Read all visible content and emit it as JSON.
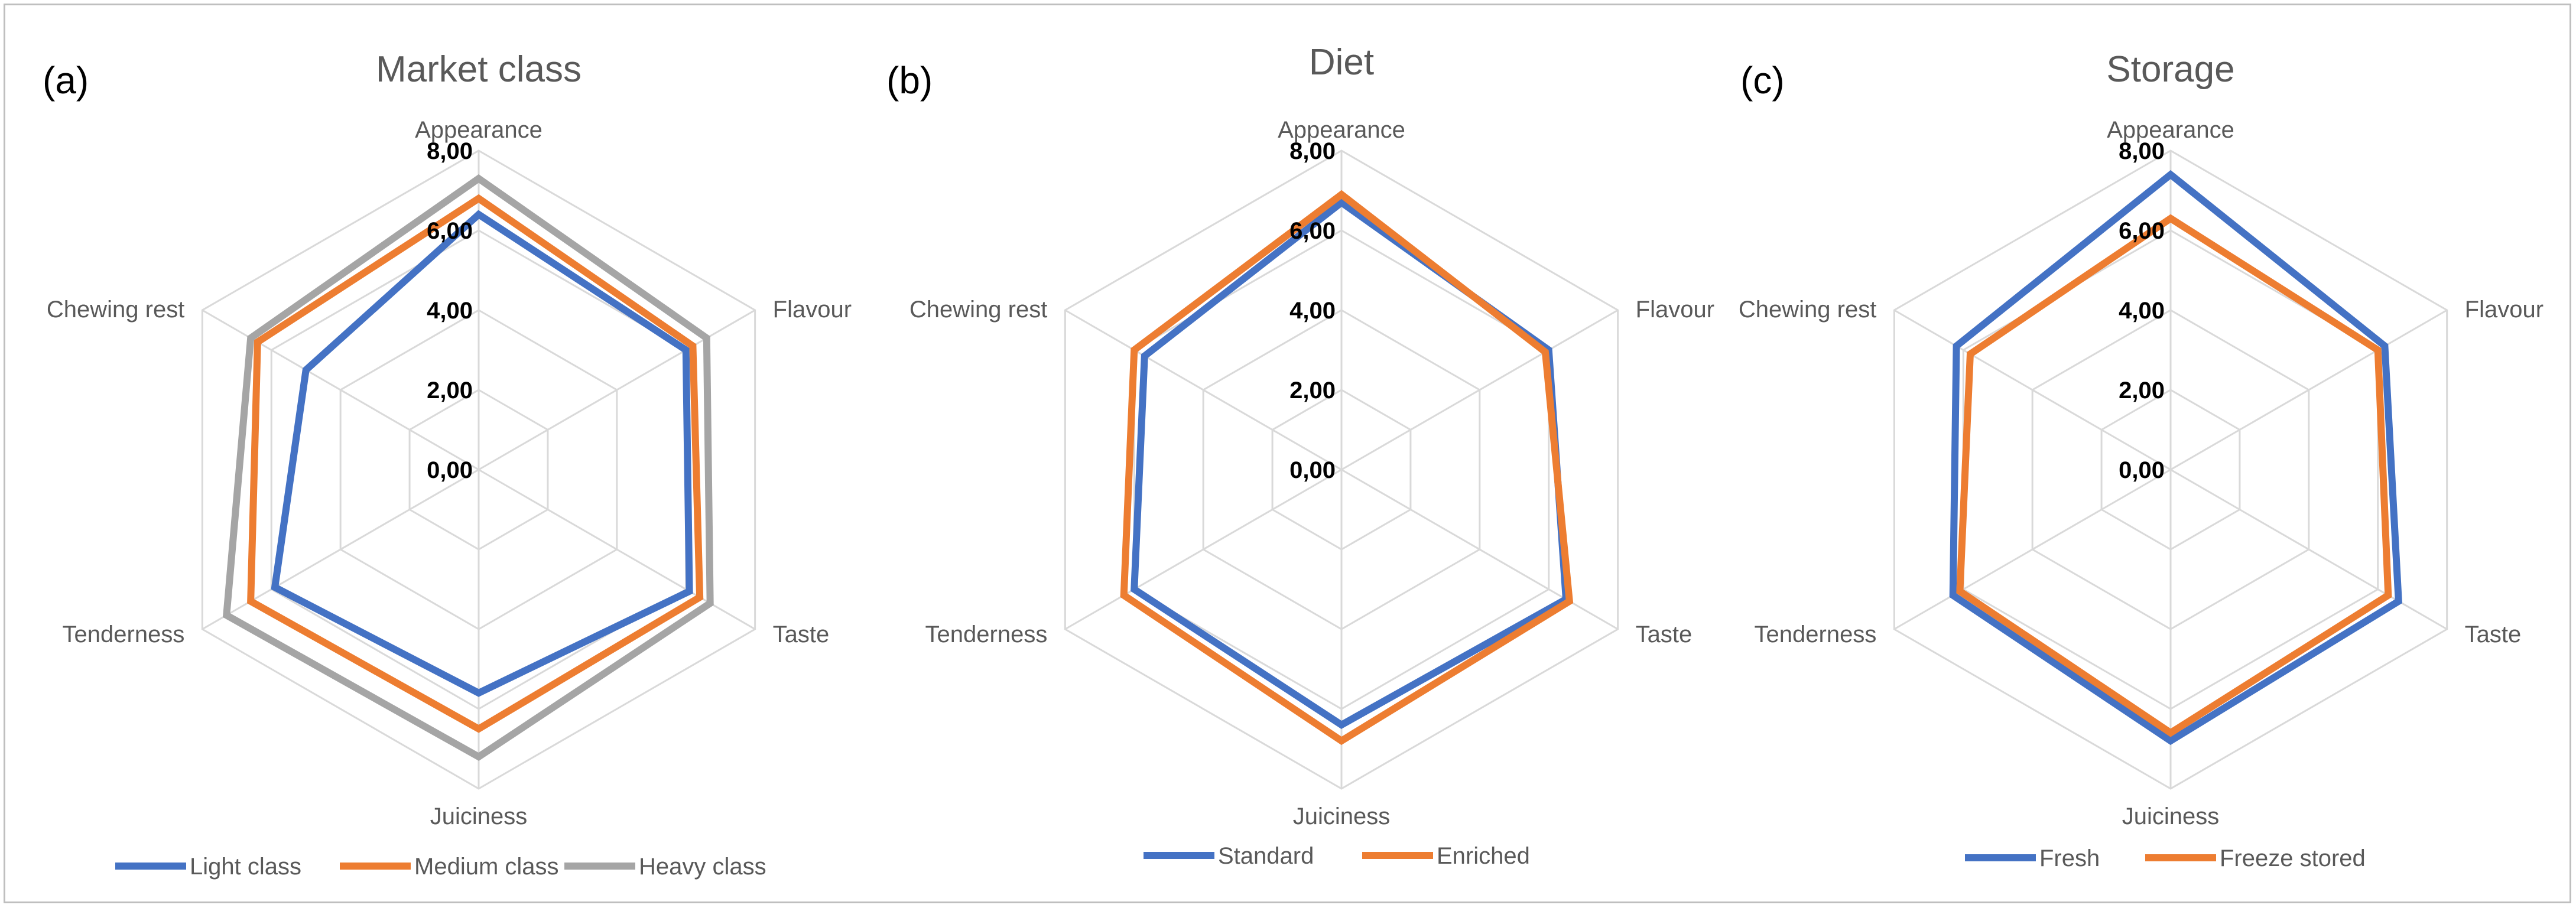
{
  "chart_data": [
    {
      "type": "radar",
      "panel_label": "(a)",
      "title": "Market class",
      "axes": [
        "Appearance",
        "Flavour",
        "Taste",
        "Juiciness",
        "Tenderness",
        "Chewing rest"
      ],
      "ticks": [
        "0,00",
        "2,00",
        "4,00",
        "6,00",
        "8,00"
      ],
      "rlim": [
        0,
        8
      ],
      "legend_position": "bottom",
      "series": [
        {
          "name": "Light  class",
          "color": "#4472c4",
          "values": [
            6.4,
            6.0,
            6.1,
            5.6,
            5.9,
            5.0
          ]
        },
        {
          "name": "Medium class",
          "color": "#ed7d31",
          "values": [
            6.8,
            6.2,
            6.4,
            6.5,
            6.6,
            6.4
          ]
        },
        {
          "name": "Heavy class",
          "color": "#a5a5a5",
          "values": [
            7.3,
            6.6,
            6.7,
            7.2,
            7.3,
            6.6
          ]
        }
      ]
    },
    {
      "type": "radar",
      "panel_label": "(b)",
      "title": "Diet",
      "axes": [
        "Appearance",
        "Flavour",
        "Taste",
        "Juiciness",
        "Tenderness",
        "Chewing rest"
      ],
      "ticks": [
        "0,00",
        "2,00",
        "4,00",
        "6,00",
        "8,00"
      ],
      "rlim": [
        0,
        8
      ],
      "legend_position": "bottom",
      "series": [
        {
          "name": "Standard",
          "color": "#4472c4",
          "values": [
            6.7,
            6.0,
            6.5,
            6.4,
            6.0,
            5.7
          ]
        },
        {
          "name": "Enriched",
          "color": "#ed7d31",
          "values": [
            6.9,
            5.9,
            6.6,
            6.8,
            6.3,
            6.0
          ]
        }
      ]
    },
    {
      "type": "radar",
      "panel_label": "(c)",
      "title": "Storage",
      "axes": [
        "Appearance",
        "Flavour",
        "Taste",
        "Juiciness",
        "Tenderness",
        "Chewing rest"
      ],
      "ticks": [
        "0,00",
        "2,00",
        "4,00",
        "6,00",
        "8,00"
      ],
      "rlim": [
        0,
        8
      ],
      "legend_position": "bottom",
      "series": [
        {
          "name": "Fresh",
          "color": "#4472c4",
          "values": [
            7.4,
            6.2,
            6.6,
            6.8,
            6.3,
            6.2
          ]
        },
        {
          "name": "Freeze stored",
          "color": "#ed7d31",
          "values": [
            6.3,
            6.0,
            6.3,
            6.6,
            6.1,
            5.8
          ]
        }
      ]
    }
  ]
}
